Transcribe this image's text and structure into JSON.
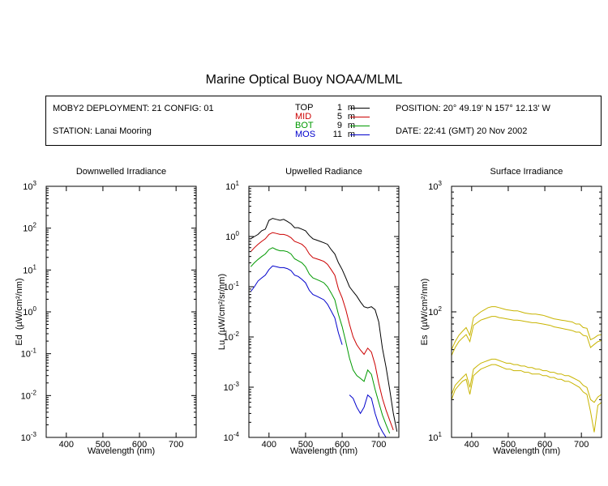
{
  "title": "Marine Optical Buoy NOAA/MLML",
  "info": {
    "deployment": "MOBY2 DEPLOYMENT: 21 CONFIG: 01",
    "station": "STATION: Lanai Mooring",
    "position": "POSITION: 20° 49.19' N   157° 12.13' W",
    "date": "DATE: 22:41 (GMT) 20 Nov 2002"
  },
  "legend": [
    {
      "name": "TOP",
      "depth": "1",
      "unit": "m",
      "color": "#000000"
    },
    {
      "name": "MID",
      "depth": "5",
      "unit": "m",
      "color": "#cc0000"
    },
    {
      "name": "BOT",
      "depth": "9",
      "unit": "m",
      "color": "#009900"
    },
    {
      "name": "MOS",
      "depth": "11",
      "unit": "m",
      "color": "#0000cc"
    }
  ],
  "chart_data": [
    {
      "type": "line",
      "title": "Downwelled Irradiance",
      "xlabel": "Wavelength (nm)",
      "ylabel_main": "Ed",
      "ylabel_units": "(µW/cm²/nm)",
      "xlim": [
        345,
        755
      ],
      "ylim": [
        0.001,
        1000
      ],
      "yscale": "log",
      "xticks": [
        400,
        500,
        600,
        700
      ],
      "yticks": [
        {
          "value": 0.001,
          "base": "10",
          "exp": "-3"
        },
        {
          "value": 0.01,
          "base": "10",
          "exp": "-2"
        },
        {
          "value": 0.1,
          "base": "10",
          "exp": "-1"
        },
        {
          "value": 1,
          "base": "10",
          "exp": "0"
        },
        {
          "value": 10,
          "base": "10",
          "exp": "1"
        },
        {
          "value": 100,
          "base": "10",
          "exp": "2"
        },
        {
          "value": 1000,
          "base": "10",
          "exp": "3"
        }
      ],
      "series": []
    },
    {
      "type": "line",
      "title": "Upwelled Radiance",
      "xlabel": "Wavelength (nm)",
      "ylabel_main": "Lu",
      "ylabel_units": "(µW/cm²/sr/nm)",
      "xlim": [
        345,
        755
      ],
      "ylim": [
        0.0001,
        10
      ],
      "yscale": "log",
      "xticks": [
        400,
        500,
        600,
        700
      ],
      "yticks": [
        {
          "value": 0.0001,
          "base": "10",
          "exp": "-4"
        },
        {
          "value": 0.001,
          "base": "10",
          "exp": "-3"
        },
        {
          "value": 0.01,
          "base": "10",
          "exp": "-2"
        },
        {
          "value": 0.1,
          "base": "10",
          "exp": "-1"
        },
        {
          "value": 1,
          "base": "10",
          "exp": "0"
        },
        {
          "value": 10,
          "base": "10",
          "exp": "1"
        }
      ],
      "series": [
        {
          "name": "TOP",
          "color": "#000000",
          "x": [
            350,
            360,
            370,
            380,
            390,
            400,
            410,
            420,
            430,
            440,
            450,
            460,
            470,
            480,
            490,
            500,
            510,
            520,
            530,
            540,
            550,
            560,
            570,
            580,
            590,
            600,
            610,
            620,
            630,
            640,
            650,
            660,
            670,
            680,
            690,
            700,
            710,
            720,
            730,
            740,
            750
          ],
          "y": [
            0.9,
            1.0,
            1.1,
            1.3,
            1.4,
            2.1,
            2.3,
            2.2,
            2.1,
            2.2,
            2.0,
            1.8,
            1.5,
            1.5,
            1.4,
            1.3,
            1.05,
            0.9,
            0.85,
            0.8,
            0.75,
            0.7,
            0.55,
            0.45,
            0.3,
            0.22,
            0.15,
            0.1,
            0.08,
            0.065,
            0.05,
            0.04,
            0.038,
            0.04,
            0.035,
            0.02,
            0.006,
            0.0025,
            0.0009,
            0.0003,
            0.00013
          ]
        },
        {
          "name": "MID",
          "color": "#cc0000",
          "x": [
            350,
            360,
            370,
            380,
            390,
            400,
            410,
            420,
            430,
            440,
            450,
            460,
            470,
            480,
            490,
            500,
            510,
            520,
            530,
            540,
            550,
            560,
            570,
            580,
            590,
            600,
            610,
            620,
            630,
            640,
            650,
            660,
            670,
            680,
            690,
            700,
            710,
            720,
            730,
            740
          ],
          "y": [
            0.5,
            0.6,
            0.7,
            0.8,
            0.9,
            1.1,
            1.2,
            1.15,
            1.1,
            1.1,
            1.05,
            0.95,
            0.8,
            0.75,
            0.7,
            0.6,
            0.45,
            0.38,
            0.36,
            0.34,
            0.32,
            0.28,
            0.22,
            0.17,
            0.09,
            0.06,
            0.035,
            0.018,
            0.01,
            0.007,
            0.0055,
            0.0045,
            0.006,
            0.005,
            0.0028,
            0.0012,
            0.0006,
            0.00035,
            0.00022,
            0.00014
          ]
        },
        {
          "name": "BOT",
          "color": "#009900",
          "x": [
            350,
            360,
            370,
            380,
            390,
            400,
            410,
            420,
            430,
            440,
            450,
            460,
            470,
            480,
            490,
            500,
            510,
            520,
            530,
            540,
            550,
            560,
            570,
            580,
            590,
            600,
            610,
            620,
            630,
            640,
            650,
            660,
            670,
            680,
            690,
            700,
            710,
            720,
            730
          ],
          "y": [
            0.25,
            0.3,
            0.35,
            0.4,
            0.45,
            0.55,
            0.6,
            0.55,
            0.52,
            0.52,
            0.5,
            0.45,
            0.36,
            0.33,
            0.3,
            0.25,
            0.18,
            0.15,
            0.14,
            0.13,
            0.12,
            0.1,
            0.075,
            0.055,
            0.028,
            0.016,
            0.008,
            0.0038,
            0.0022,
            0.0017,
            0.0015,
            0.0013,
            0.0022,
            0.0018,
            0.0009,
            0.0005,
            0.00028,
            0.00018,
            0.00012
          ]
        },
        {
          "name": "MOS",
          "color": "#0000cc",
          "x": [
            350,
            360,
            370,
            380,
            390,
            400,
            410,
            420,
            430,
            440,
            450,
            460,
            470,
            480,
            490,
            500,
            510,
            520,
            530,
            540,
            550,
            560,
            570,
            580,
            590,
            600
          ],
          "y": [
            0.08,
            0.1,
            0.13,
            0.15,
            0.17,
            0.22,
            0.26,
            0.25,
            0.24,
            0.24,
            0.23,
            0.21,
            0.17,
            0.16,
            0.14,
            0.12,
            0.085,
            0.07,
            0.065,
            0.06,
            0.055,
            0.045,
            0.033,
            0.024,
            0.012,
            0.007
          ]
        },
        {
          "name": "MOS",
          "color": "#0000cc",
          "x": [
            620,
            630,
            640,
            650,
            660,
            670,
            680,
            690,
            700,
            710,
            720
          ],
          "y": [
            0.0007,
            0.0006,
            0.0004,
            0.0003,
            0.0004,
            0.0007,
            0.0006,
            0.0003,
            0.00018,
            0.00013,
            0.0001
          ]
        }
      ]
    },
    {
      "type": "line",
      "title": "Surface Irradiance",
      "xlabel": "Wavelength (nm)",
      "ylabel_main": "Es",
      "ylabel_units": "(µW/cm²/nm)",
      "xlim": [
        345,
        755
      ],
      "ylim": [
        10,
        1000
      ],
      "yscale": "log",
      "xticks": [
        400,
        500,
        600,
        700
      ],
      "yticks": [
        {
          "value": 10,
          "base": "10",
          "exp": "1"
        },
        {
          "value": 100,
          "base": "10",
          "exp": "2"
        },
        {
          "value": 1000,
          "base": "10",
          "exp": "3"
        }
      ],
      "series": [
        {
          "name": "",
          "color": "#c8b400",
          "x": [
            345,
            355,
            365,
            375,
            385,
            395,
            405,
            415,
            425,
            435,
            445,
            455,
            465,
            475,
            485,
            495,
            505,
            515,
            525,
            535,
            545,
            555,
            565,
            575,
            585,
            595,
            605,
            615,
            625,
            635,
            645,
            655,
            665,
            675,
            685,
            695,
            705,
            715,
            725,
            735,
            745,
            755
          ],
          "y": [
            50,
            58,
            65,
            70,
            75,
            65,
            90,
            95,
            100,
            104,
            108,
            110,
            110,
            108,
            106,
            104,
            103,
            102,
            102,
            100,
            98,
            97,
            96,
            96,
            95,
            94,
            92,
            90,
            88,
            87,
            86,
            85,
            84,
            83,
            80,
            80,
            75,
            74,
            60,
            62,
            65,
            66
          ]
        },
        {
          "name": "",
          "color": "#c8b400",
          "x": [
            345,
            355,
            365,
            375,
            385,
            395,
            405,
            415,
            425,
            435,
            445,
            455,
            465,
            475,
            485,
            495,
            505,
            515,
            525,
            535,
            545,
            555,
            565,
            575,
            585,
            595,
            605,
            615,
            625,
            635,
            645,
            655,
            665,
            675,
            685,
            695,
            705,
            715,
            725,
            735,
            745,
            755
          ],
          "y": [
            45,
            52,
            58,
            62,
            66,
            58,
            78,
            82,
            86,
            88,
            90,
            92,
            92,
            90,
            89,
            88,
            87,
            86,
            86,
            85,
            84,
            83,
            82,
            82,
            81,
            80,
            79,
            78,
            76,
            75,
            74,
            73,
            72,
            71,
            69,
            69,
            65,
            64,
            52,
            55,
            58,
            59
          ]
        },
        {
          "name": "",
          "color": "#c8b400",
          "x": [
            345,
            355,
            365,
            375,
            385,
            395,
            405,
            415,
            425,
            435,
            445,
            455,
            465,
            475,
            485,
            495,
            505,
            515,
            525,
            535,
            545,
            555,
            565,
            575,
            585,
            595,
            605,
            615,
            625,
            635,
            645,
            655,
            665,
            675,
            685,
            695,
            705,
            715,
            725,
            735,
            745,
            755
          ],
          "y": [
            22,
            26,
            28,
            30,
            32,
            25,
            35,
            37,
            39,
            40,
            41,
            42,
            42,
            41,
            40,
            39,
            39,
            38,
            38,
            37,
            37,
            36,
            36,
            35,
            35,
            34,
            34,
            33,
            33,
            32,
            32,
            31,
            31,
            30,
            29,
            28,
            26,
            25,
            20,
            19,
            21,
            22
          ]
        },
        {
          "name": "",
          "color": "#c8b400",
          "x": [
            345,
            355,
            365,
            375,
            385,
            395,
            405,
            415,
            425,
            435,
            445,
            455,
            465,
            475,
            485,
            495,
            505,
            515,
            525,
            535,
            545,
            555,
            565,
            575,
            585,
            595,
            605,
            615,
            625,
            635,
            645,
            655,
            665,
            675,
            685,
            695,
            705,
            715,
            725,
            735,
            745,
            755
          ],
          "y": [
            20,
            24,
            26,
            28,
            29,
            22,
            31,
            33,
            35,
            36,
            37,
            38,
            38,
            37,
            36,
            35,
            35,
            34,
            34,
            34,
            33,
            33,
            32,
            32,
            32,
            31,
            31,
            30,
            30,
            29,
            29,
            28,
            28,
            27,
            26,
            25,
            23,
            22,
            16,
            11,
            18,
            19
          ]
        }
      ]
    }
  ]
}
